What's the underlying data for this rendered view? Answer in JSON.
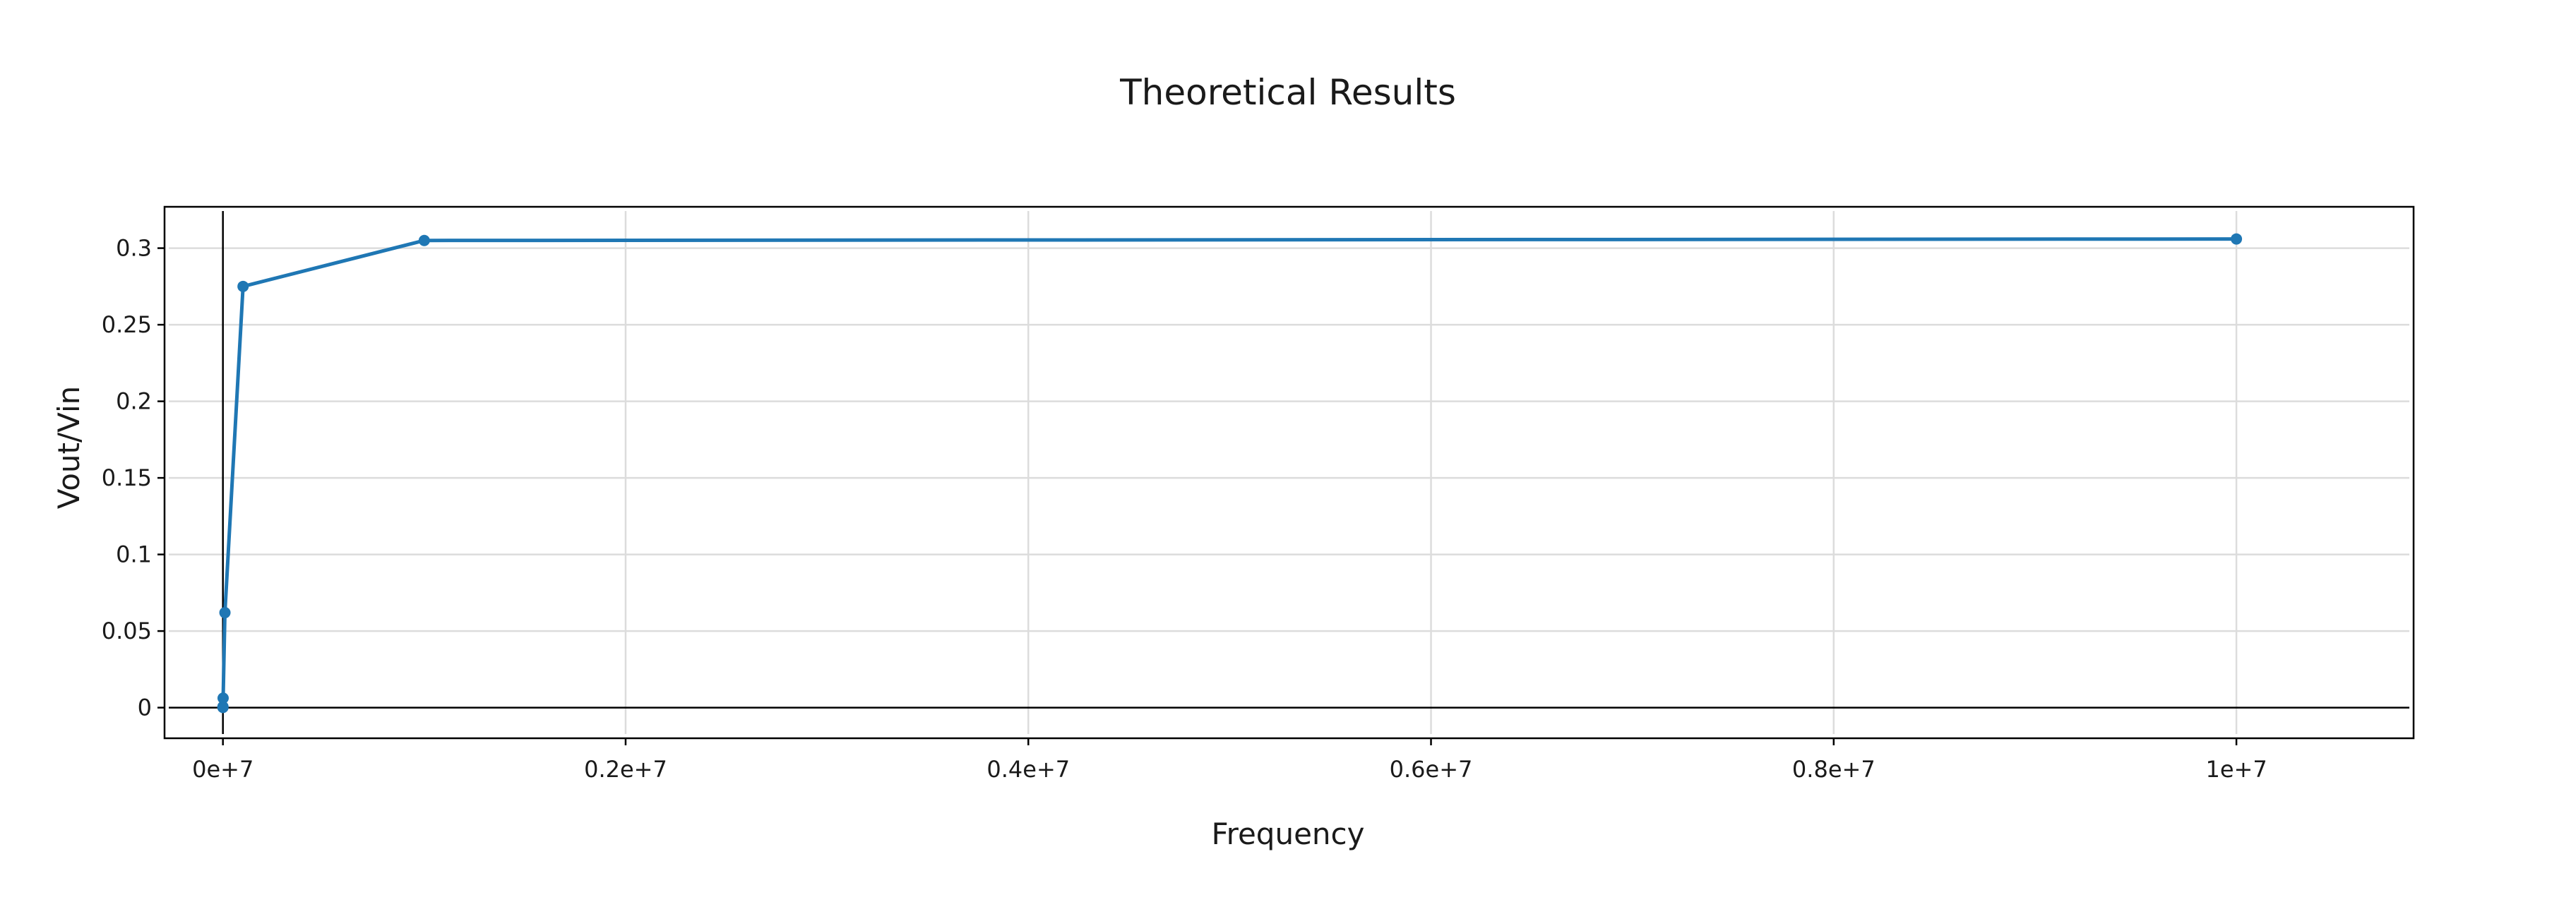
{
  "chart_data": {
    "type": "line",
    "title": "Theoretical Results",
    "xlabel": "Frequency",
    "ylabel": "Vout/Vin",
    "xlim": [
      -290000,
      10880000
    ],
    "ylim": [
      -0.02,
      0.327
    ],
    "x_ticks": [
      0,
      2000000,
      4000000,
      6000000,
      8000000,
      10000000
    ],
    "x_tick_labels": [
      "0e+7",
      "0.2e+7",
      "0.4e+7",
      "0.6e+7",
      "0.8e+7",
      "1e+7"
    ],
    "y_ticks": [
      0,
      0.05,
      0.1,
      0.15,
      0.2,
      0.25,
      0.3
    ],
    "y_tick_labels": [
      "0",
      "0.05",
      "0.1",
      "0.15",
      "0.2",
      "0.25",
      "0.3"
    ],
    "grid": true,
    "legend": "none",
    "series": [
      {
        "color": "#1f77b4",
        "x": [
          10,
          100,
          1000,
          10000,
          100000,
          1000000,
          10000000
        ],
        "y": [
          0.0001,
          0.0006,
          0.0062,
          0.062,
          0.275,
          0.305,
          0.306
        ]
      }
    ]
  }
}
